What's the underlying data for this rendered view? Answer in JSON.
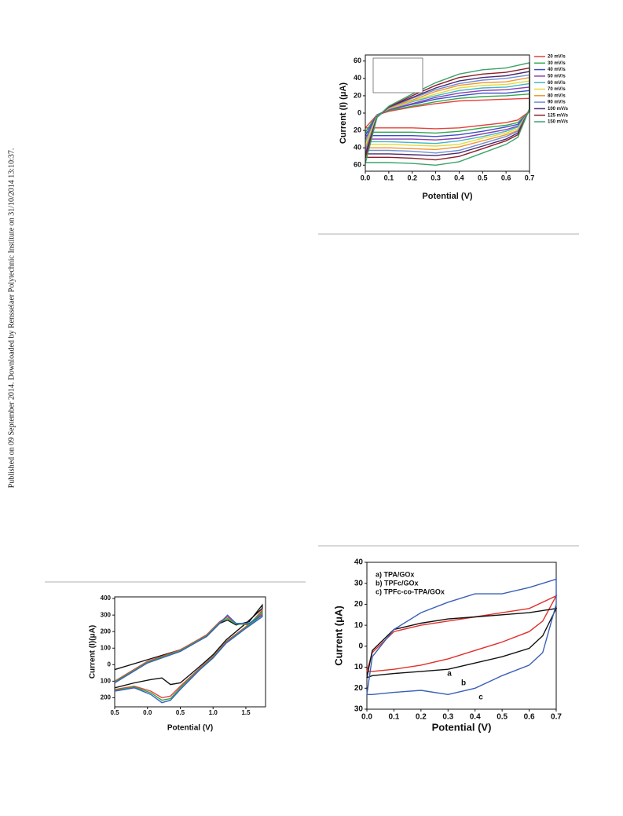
{
  "side_note": "Published on 09 September 2014. Downloaded by Rensselaer Polytechnic Institute on 31/10/2014 13:10:37.",
  "chart_data": [
    {
      "type": "line",
      "ylabel": "Current (I) (μA)",
      "xlabel": "Potential (V)",
      "xlim": [
        0,
        0.7
      ],
      "ylim": [
        -67,
        67
      ],
      "xticks": [
        {
          "value": 0,
          "label": "0.0"
        },
        0.1,
        0.2,
        0.3,
        0.4,
        0.5,
        0.6,
        0.7
      ],
      "yticks": [
        {
          "value": -60,
          "label": "60"
        },
        {
          "value": -40,
          "label": "40"
        },
        {
          "value": -20,
          "label": "20"
        },
        0,
        20,
        40,
        60
      ],
      "x": [
        0,
        0.05,
        0.1,
        0.2,
        0.3,
        0.4,
        0.5,
        0.6,
        0.7,
        0.7,
        0.65,
        0.6,
        0.5,
        0.4,
        0.3,
        0.2,
        0.1,
        0
      ],
      "series": [
        {
          "name": "20 mV/s",
          "color": "#e8413c",
          "values": [
            -17,
            -2,
            2,
            7,
            11,
            14,
            15,
            16,
            17,
            2,
            -8,
            -11,
            -14,
            -17,
            -18,
            -17,
            -17,
            -17
          ]
        },
        {
          "name": "30 mV/s",
          "color": "#2fa84a",
          "values": [
            -22,
            -2,
            3,
            8,
            13,
            17,
            19,
            20,
            22,
            2,
            -11,
            -14,
            -17,
            -21,
            -23,
            -22,
            -22,
            -22
          ]
        },
        {
          "name": "40 mV/s",
          "color": "#3b4fc4",
          "values": [
            -26,
            -2,
            4,
            10,
            16,
            20,
            23,
            23,
            26,
            2,
            -13,
            -16,
            -21,
            -25,
            -27,
            -26,
            -26,
            -26
          ]
        },
        {
          "name": "50 mV/s",
          "color": "#8a3fb0",
          "values": [
            -30,
            -3,
            4,
            11,
            18,
            23,
            26,
            27,
            30,
            3,
            -15,
            -19,
            -24,
            -29,
            -31,
            -30,
            -30,
            -30
          ]
        },
        {
          "name": "60 mV/s",
          "color": "#3fb7c9",
          "values": [
            -34,
            -3,
            5,
            13,
            20,
            26,
            29,
            30,
            34,
            3,
            -16,
            -21,
            -27,
            -32,
            -35,
            -34,
            -33,
            -33
          ]
        },
        {
          "name": "70 mV/s",
          "color": "#e6d83a",
          "values": [
            -37,
            -3,
            5,
            14,
            22,
            29,
            32,
            33,
            37,
            3,
            -18,
            -23,
            -29,
            -36,
            -38,
            -37,
            -36,
            -36
          ]
        },
        {
          "name": "80 mV/s",
          "color": "#f0962e",
          "values": [
            -41,
            -4,
            6,
            15,
            25,
            32,
            35,
            36,
            41,
            4,
            -20,
            -25,
            -32,
            -39,
            -42,
            -41,
            -40,
            -40
          ]
        },
        {
          "name": "90 mV/s",
          "color": "#6f8fd8",
          "values": [
            -44,
            -4,
            6,
            17,
            27,
            34,
            38,
            40,
            44,
            4,
            -21,
            -27,
            -35,
            -43,
            -46,
            -44,
            -43,
            -43
          ]
        },
        {
          "name": "100 mV/s",
          "color": "#4a2a6e",
          "values": [
            -48,
            -4,
            7,
            18,
            29,
            37,
            41,
            43,
            48,
            4,
            -23,
            -30,
            -38,
            -46,
            -49,
            -48,
            -47,
            -47
          ]
        },
        {
          "name": "125 mV/s",
          "color": "#8a1e2a",
          "values": [
            -52,
            -5,
            7,
            20,
            32,
            41,
            45,
            47,
            52,
            5,
            -25,
            -32,
            -41,
            -50,
            -54,
            -52,
            -51,
            -51
          ]
        },
        {
          "name": "150 mV/s",
          "color": "#3aa36a",
          "values": [
            -58,
            -5,
            8,
            22,
            35,
            45,
            50,
            52,
            58,
            5,
            -28,
            -36,
            -46,
            -56,
            -60,
            -58,
            -57,
            -57
          ]
        }
      ]
    },
    {
      "type": "line",
      "ylabel": "Current (I)(μA)",
      "xlabel": "Potential (V)",
      "xlim": [
        -0.5,
        1.8
      ],
      "ylim": [
        -255,
        410
      ],
      "xticks": [
        {
          "value": -0.5,
          "label": "0.5"
        },
        {
          "value": 0,
          "label": "0.0"
        },
        0.5,
        {
          "value": 1,
          "label": "1.0"
        },
        1.5
      ],
      "yticks": [
        {
          "value": -200,
          "label": "200"
        },
        {
          "value": -100,
          "label": "100"
        },
        0,
        100,
        200,
        300,
        400
      ],
      "x": [
        -0.5,
        0,
        0.5,
        0.9,
        1.1,
        1.22,
        1.35,
        1.55,
        1.75,
        1.75,
        1.5,
        1.2,
        1.0,
        0.8,
        0.5,
        0.35,
        0.22,
        0.05,
        -0.2,
        -0.5
      ],
      "series": [
        {
          "color": "#111111",
          "values": [
            -30,
            30,
            90,
            170,
            250,
            270,
            240,
            260,
            360,
            340,
            250,
            150,
            60,
            -10,
            -110,
            -120,
            -80,
            -90,
            -110,
            -140
          ]
        },
        {
          "color": "#e8413c",
          "values": [
            -100,
            20,
            90,
            180,
            260,
            290,
            250,
            240,
            330,
            310,
            230,
            140,
            50,
            -20,
            -130,
            -190,
            -200,
            -160,
            -130,
            -150
          ]
        },
        {
          "color": "#2fa84a",
          "values": [
            -105,
            15,
            85,
            175,
            255,
            280,
            245,
            245,
            320,
            300,
            225,
            135,
            45,
            -25,
            -140,
            -205,
            -215,
            -170,
            -135,
            -155
          ]
        },
        {
          "color": "#3b5fc4",
          "values": [
            -110,
            10,
            80,
            170,
            250,
            300,
            250,
            250,
            300,
            290,
            220,
            130,
            40,
            -30,
            -150,
            -215,
            -230,
            -180,
            -140,
            -160
          ]
        }
      ]
    },
    {
      "type": "line",
      "ylabel": "Current (μA)",
      "xlabel": "Potential (V)",
      "xlim": [
        0,
        0.7
      ],
      "ylim": [
        -30,
        40
      ],
      "xticks": [
        {
          "value": 0,
          "label": "0.0"
        },
        0.1,
        0.2,
        0.3,
        0.4,
        0.5,
        0.6,
        0.7
      ],
      "yticks": [
        {
          "value": -30,
          "label": "30"
        },
        {
          "value": -20,
          "label": "20"
        },
        {
          "value": -10,
          "label": "10"
        },
        0,
        10,
        20,
        30,
        40
      ],
      "x": [
        0,
        0.02,
        0.1,
        0.2,
        0.3,
        0.4,
        0.5,
        0.6,
        0.7,
        0.7,
        0.65,
        0.6,
        0.5,
        0.4,
        0.3,
        0.2,
        0.1,
        0.02,
        0
      ],
      "series": [
        {
          "name": "a) TPA/GOx",
          "color": "#e0302a",
          "values": [
            -12,
            -3,
            7,
            10,
            12,
            14,
            16,
            18,
            24,
            24,
            12,
            7,
            2,
            -2,
            -6,
            -9,
            -11,
            -12,
            -12
          ]
        },
        {
          "name": "b) TPFc/GOx",
          "color": "#111111",
          "values": [
            -15,
            -2,
            8,
            11,
            13,
            14,
            15,
            16,
            18,
            18,
            5,
            -1,
            -5,
            -8,
            -11,
            -12,
            -13,
            -14,
            -15
          ]
        },
        {
          "name": "c) TPFc-co-TPA/GOx",
          "color": "#3a5fb8",
          "values": [
            -23,
            -5,
            8,
            16,
            21,
            25,
            25,
            28,
            32,
            20,
            -3,
            -9,
            -14,
            -20,
            -23,
            -21,
            -22,
            -23,
            -23
          ]
        }
      ],
      "annotations": [
        "a",
        "b",
        "c"
      ]
    }
  ]
}
